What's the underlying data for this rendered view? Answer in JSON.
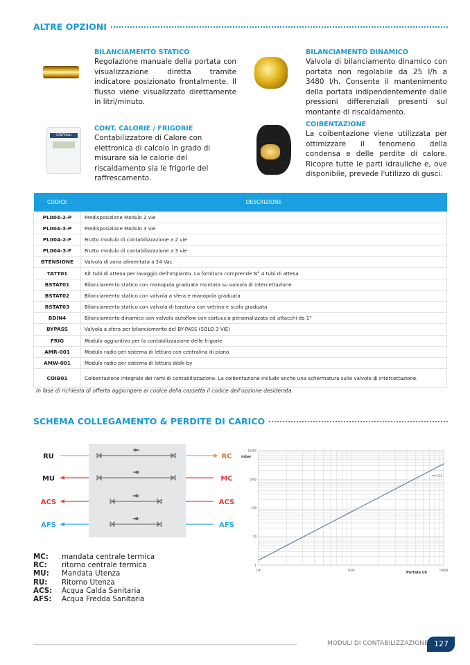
{
  "section1": {
    "title": "ALTRE OPZIONI"
  },
  "options": [
    {
      "title": "BILANCIAMENTO STATICO",
      "text": "Regolazione manuale della portata con visualizzazione diretta tramite indicatore posizionato frontalmente. Il flusso viene visualizzato direttamente in litri/minuto."
    },
    {
      "title": "BILANCIAMENTO DINAMICO",
      "text": "Valvola di bilanciamento dinamico con portata non regolabile da 25 l/h a 3480 l/h. Consente il mantenimento della portata indipendentemente dalle pressioni differenziali presenti sul montante di riscaldamento."
    },
    {
      "title": "CONT. CALORIE / FRIGORIE",
      "text": "Contabilizzatore di Calore con elettronica di calcolo in grado di misurare sia le calorie del riscaldamento sia le frigorie del raffrescamento."
    },
    {
      "title": "COIBENTAZIONE",
      "text": "La coibentazione viene utilizzata per ottimizzare il fenomeno della condensa e delle perdite di calore. Ricopre tutte le parti idrauliche e, ove disponibile, prevede l'utilizzo di gusci."
    }
  ],
  "meter_brand": "CONTROLLI",
  "table": {
    "headers": [
      "CODICE",
      "DESCRIZIONE"
    ],
    "rows": [
      [
        "PL004-2-P",
        "Predisposizione Modulo 2 vie"
      ],
      [
        "PL004-3-P",
        "Predisposizione Modulo 3 vie"
      ],
      [
        "PL004-2-F",
        "Frutto modulo di contabilizzazione a 2 vie"
      ],
      [
        "PL004-3-F",
        "Frutto modulo di contabilizzazione a 3 vie"
      ],
      [
        "BTENSIONE",
        "Valvola di zona alimentata a 24 Vac"
      ],
      [
        "TATT01",
        "Kit tubi di attesa per lavaggio dell'impianto. La fornitura comprende N° 4 tubi di attesa"
      ],
      [
        "BSTAT01",
        "Bilanciamento statico con manopola graduata montata su valvola di intercettazione"
      ],
      [
        "BSTAT02",
        "Bilanciamento statico con valvola a sfera e manopola graduata"
      ],
      [
        "BSTAT03",
        "Bilanciamento statico con valvola di taratura con vetrino e scala graduata"
      ],
      [
        "BDIN4",
        "Bilanciamento dinamico con valvola autoflow con cartuccia personalizzata ed attacchi da 1\""
      ],
      [
        "BYPASS",
        "Valvola a sfera per bilanciamento del BY-PASS (SOLO 3 VIE)"
      ],
      [
        "FRIG",
        "Modulo aggiuntivo per la contabilizzazione delle frigorie"
      ],
      [
        "AMR-001",
        "Modulo radio per sistema di lettura con centralina di piano"
      ],
      [
        "AMW-001",
        "Modulo radio per sistema di lettura Walk-by"
      ],
      [
        "COIB01",
        "Coibentazione integrale dei rami di contabilizzazione. La coibentazione include anche una schermatura sulle valvole di intercettazione."
      ]
    ]
  },
  "table_note": "In fase di richiesta di offerta aggiungere al codice della cassetta il codice dell'opzione desiderata",
  "section2": {
    "title": "SCHEMA COLLEGAMENTO & PERDITE DI CARICO"
  },
  "diagram": {
    "left": [
      {
        "label": "RU",
        "color": "#222222",
        "line": "#e8a060"
      },
      {
        "label": "MU",
        "color": "#222222",
        "line": "#e04848"
      },
      {
        "label": "ACS",
        "color": "#e03c3c",
        "line": "#e04848"
      },
      {
        "label": "AFS",
        "color": "#2aa8e0",
        "line": "#2aa8e0"
      }
    ],
    "right": [
      {
        "label": "RC",
        "color": "#c87a30",
        "line": "#e8a060"
      },
      {
        "label": "MC",
        "color": "#e03c3c",
        "line": "#e04848"
      },
      {
        "label": "ACS",
        "color": "#e03c3c",
        "line": "#e04848"
      },
      {
        "label": "AFS",
        "color": "#2aa8e0",
        "line": "#2aa8e0"
      }
    ]
  },
  "legend": [
    [
      "MC:",
      "mandata centrale termica"
    ],
    [
      "RC:",
      "ritorno centrale termica"
    ],
    [
      "MU:",
      "Mandata Utenza"
    ],
    [
      "RU:",
      "Ritorno Utenza"
    ],
    [
      "ACS:",
      "Acqua Calda Sanitaria"
    ],
    [
      "AFS:",
      "Acqua Fredda Sanitaria"
    ]
  ],
  "chart_data": {
    "type": "line",
    "xscale": "log",
    "yscale": "log",
    "xlim": [
      100,
      10000
    ],
    "ylim": [
      1,
      10000
    ],
    "xlabel": "Portata l/h",
    "ylabel": "mbar",
    "xticks": [
      "100",
      "1000",
      "10000"
    ],
    "yticks": [
      "1",
      "10",
      "100",
      "1000",
      "10000"
    ],
    "grid": true,
    "legend_position": "top-right",
    "series": [
      {
        "name": "2,5",
        "color": "#5b7fa8",
        "x": [
          100,
          10000
        ],
        "y": [
          1.5,
          3500
        ]
      }
    ]
  },
  "footer": {
    "text": "MODULI DI CONTABILIZZAZIONE",
    "page": "127"
  }
}
